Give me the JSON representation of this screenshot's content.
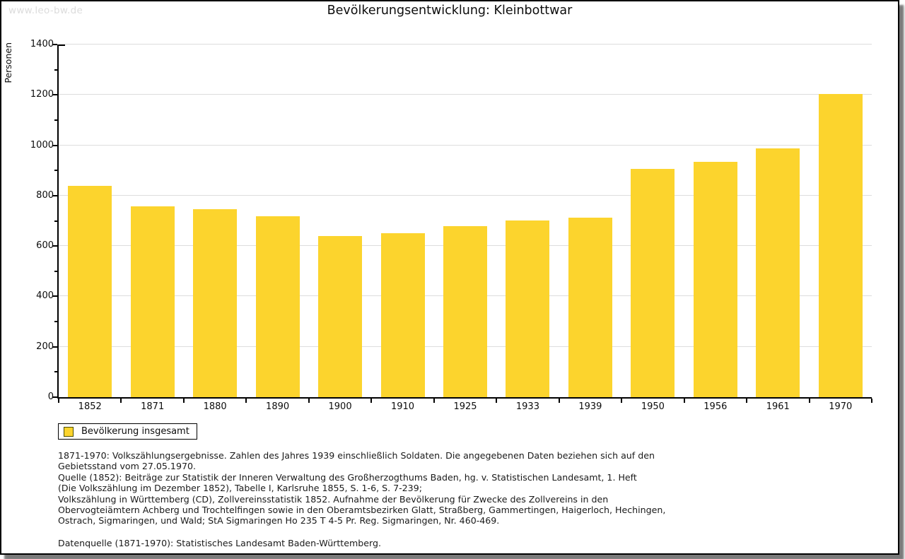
{
  "watermark": "www.leo-bw.de",
  "title": "Bevölkerungsentwicklung: Kleinbottwar",
  "chart_data": {
    "type": "bar",
    "title": "Bevölkerungsentwicklung: Kleinbottwar",
    "xlabel": "",
    "ylabel": "Personen",
    "categories": [
      "1852",
      "1871",
      "1880",
      "1890",
      "1900",
      "1910",
      "1925",
      "1933",
      "1939",
      "1950",
      "1956",
      "1961",
      "1970"
    ],
    "values": [
      840,
      758,
      747,
      718,
      640,
      651,
      679,
      700,
      712,
      906,
      933,
      988,
      1204
    ],
    "ylim": [
      0,
      1400
    ],
    "ytick_step": 200,
    "yminor_tick_step": 100,
    "ytick_labels": [
      "0",
      "200",
      "400",
      "600",
      "800",
      "1000",
      "1200",
      "1400"
    ],
    "grid": "horizontal",
    "legend_position": "bottom-left",
    "bar_color": "#FCD42D",
    "gridline_color": "#dddddd"
  },
  "legend": {
    "label": "Bevölkerung insgesamt",
    "swatch_color": "#FCD42D"
  },
  "footnotes": {
    "para1": "1871-1970: Volkszählungsergebnisse. Zahlen des Jahres 1939 einschließlich Soldaten. Die angegebenen Daten beziehen sich auf den\nGebietsstand vom 27.05.1970.\nQuelle (1852): Beiträge zur Statistik der Inneren Verwaltung des Großherzogthums Baden, hg. v. Statistischen Landesamt, 1. Heft\n(Die Volkszählung im Dezember 1852), Tabelle I, Karlsruhe 1855, S. 1-6, S. 7-239;\nVolkszählung in Württemberg (CD), Zollvereinsstatistik 1852. Aufnahme der Bevölkerung für Zwecke des Zollvereins in den\nObervogteiämtern Achberg und Trochtelfingen sowie in den Oberamtsbezirken Glatt, Straßberg, Gammertingen, Haigerloch, Hechingen,\nOstrach, Sigmaringen, und Wald; StA Sigmaringen Ho 235 T 4-5 Pr. Reg. Sigmaringen, Nr. 460-469.",
    "para2": "Datenquelle (1871-1970): Statistisches Landesamt Baden-Württemberg."
  },
  "colors": {
    "bar": "#FCD42D",
    "gridline": "#dddddd",
    "axis": "#000000",
    "watermark": "#dcdcdc",
    "page_border": "#000000"
  }
}
